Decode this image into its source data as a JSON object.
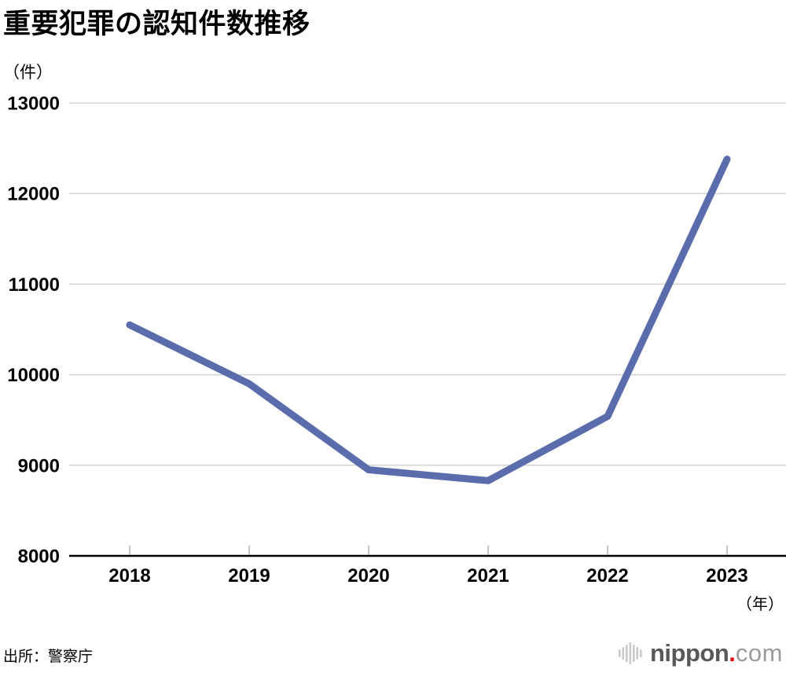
{
  "chart_data": {
    "type": "line",
    "title": "重要犯罪の認知件数推移",
    "x": [
      2018,
      2019,
      2020,
      2021,
      2022,
      2023
    ],
    "values": [
      10550,
      9900,
      8950,
      8830,
      9540,
      12380
    ],
    "series_name": "重要犯罪の認知件数",
    "ylim": [
      8000,
      13000
    ],
    "yticks": [
      8000,
      9000,
      10000,
      11000,
      12000,
      13000
    ],
    "y_unit": "（件）",
    "x_unit": "（年）",
    "grid": true,
    "legend": "none",
    "line_color": "#5a6cac",
    "grid_color": "#d2d2d2",
    "axis_color": "#000000",
    "tick_color": "#b3b3b3"
  },
  "footer": {
    "source": "出所：警察庁"
  },
  "logo": {
    "name": "nippon",
    "dot": ".",
    "tld": "com",
    "icon": "soundwave-bars-icon",
    "colors": {
      "name_text": "#595757",
      "dot": "#e60012",
      "tld_text": "#9c9c9c",
      "bars": "#c9c9c9"
    }
  }
}
